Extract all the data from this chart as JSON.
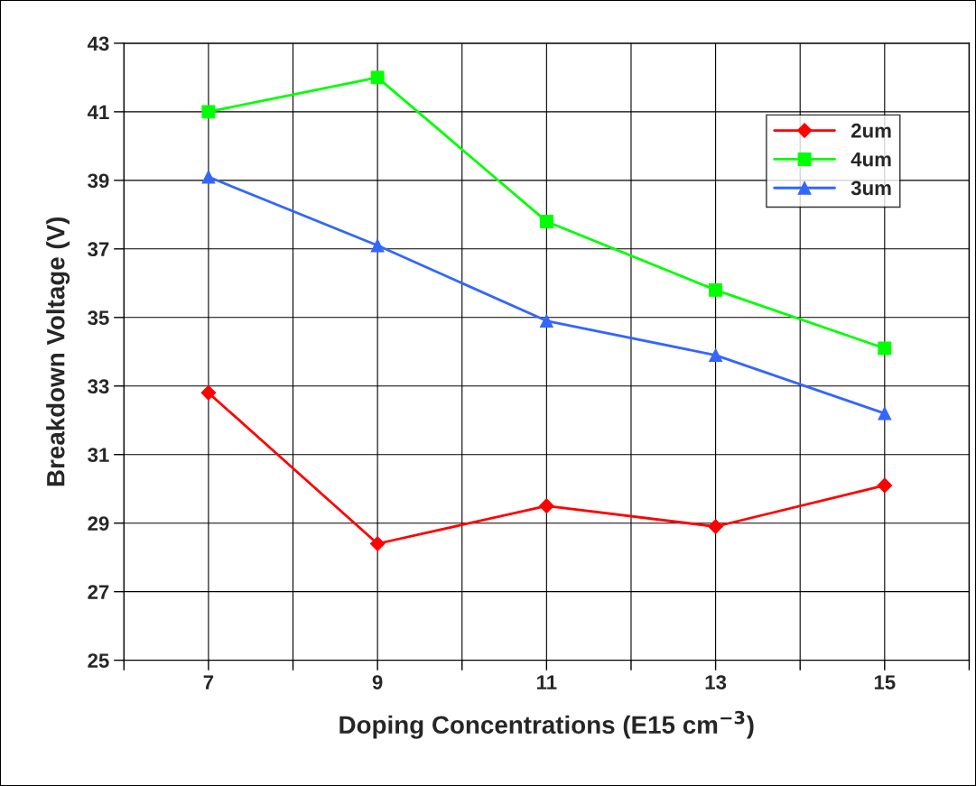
{
  "chart_data": {
    "type": "line",
    "xlabel": "Doping Concentrations (E15 cm$^{−3}$)",
    "ylabel": "Breakdown Voltage (V)",
    "x": [
      7,
      9,
      11,
      13,
      15
    ],
    "series": [
      {
        "name": "2um",
        "color": "#ff0000",
        "marker": "diamond",
        "values": [
          32.8,
          28.4,
          29.5,
          28.9,
          30.1
        ]
      },
      {
        "name": "4um",
        "color": "#00ff00",
        "marker": "square",
        "values": [
          41.0,
          42.0,
          37.8,
          35.8,
          34.1
        ]
      },
      {
        "name": "3um",
        "color": "#3366ff",
        "marker": "triangle",
        "values": [
          39.1,
          37.1,
          34.9,
          33.9,
          32.2
        ]
      }
    ],
    "xlim": [
      6,
      16
    ],
    "xticks": [
      {
        "value": 6,
        "label": null
      },
      7,
      {
        "value": 8,
        "label": null
      },
      9,
      {
        "value": 10,
        "label": null
      },
      11,
      {
        "value": 12,
        "label": null
      },
      13,
      {
        "value": 14,
        "label": null
      },
      15,
      {
        "value": 16,
        "label": null
      }
    ],
    "ylim": [
      25,
      43
    ],
    "yticks": [
      25,
      27,
      29,
      31,
      33,
      35,
      37,
      39,
      41,
      43
    ],
    "grid": true,
    "legend": "top right",
    "line_style": "solid"
  }
}
